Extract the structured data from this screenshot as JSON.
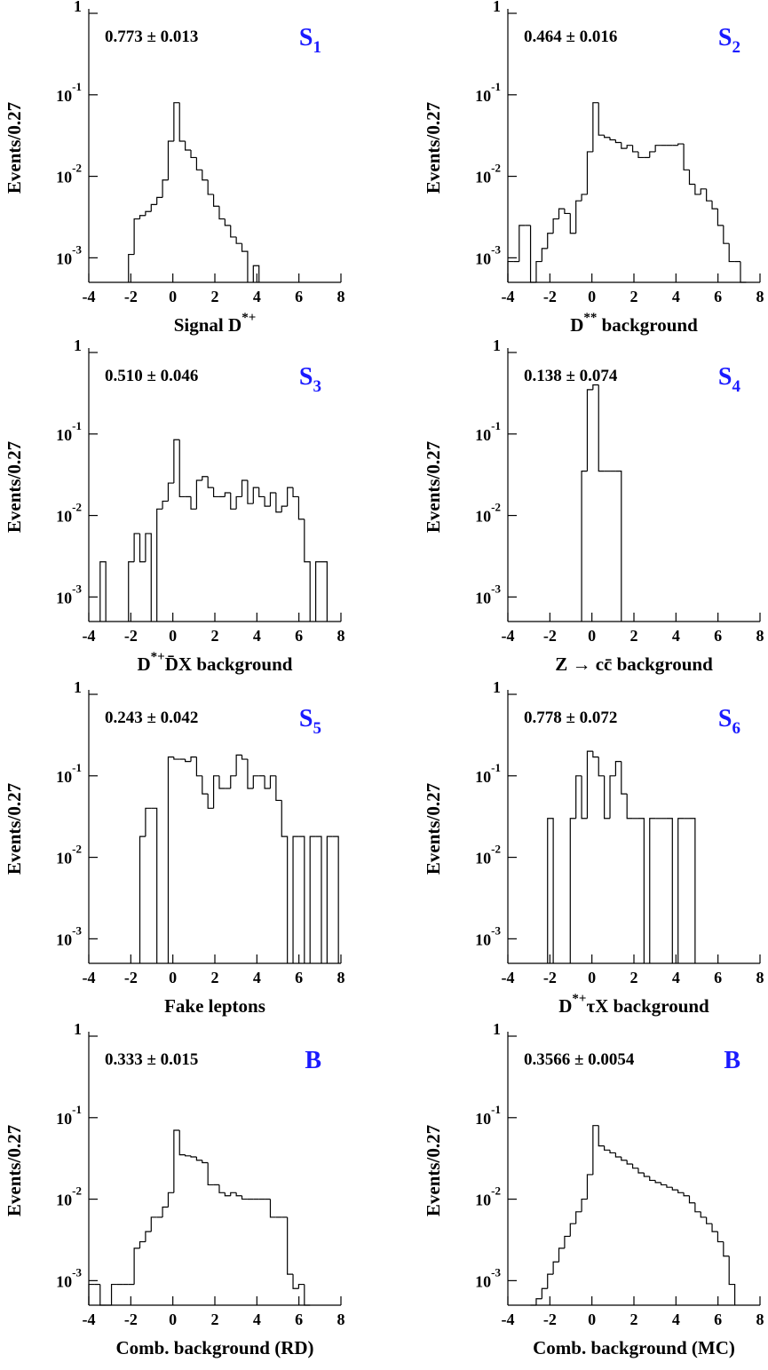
{
  "chart_data": [
    {
      "type": "histogram",
      "log_y": true,
      "annotation": "0.773 ± 0.013",
      "tag": {
        "text": "S",
        "sub": "1"
      },
      "ylabel": "Events/0.27",
      "xlabel": [
        {
          "text": "Signal D"
        },
        {
          "sup": "*+"
        }
      ],
      "bins": [
        -4,
        -3.73,
        -3.46,
        -3.19,
        -2.92,
        -2.65,
        -2.38,
        -2.11,
        -1.84,
        -1.57,
        -1.3,
        -1.03,
        -0.76,
        -0.49,
        -0.22,
        0.05,
        0.32,
        0.59,
        0.86,
        1.13,
        1.4,
        1.67,
        1.94,
        2.21,
        2.48,
        2.75,
        3.02,
        3.29,
        3.56,
        3.83,
        4.1,
        4.37,
        4.64,
        4.91,
        5.18,
        5.45,
        5.72,
        5.99,
        6.26,
        6.53,
        6.8,
        7.07,
        7.34,
        7.61,
        7.88
      ],
      "values": [
        null,
        null,
        null,
        null,
        null,
        null,
        null,
        0.0011,
        0.003,
        0.0033,
        0.0037,
        0.0045,
        0.0055,
        0.009,
        0.027,
        0.08,
        0.027,
        0.021,
        0.017,
        0.012,
        0.009,
        0.006,
        0.0043,
        0.003,
        0.0025,
        0.0018,
        0.0015,
        0.0012,
        null,
        0.0008,
        null,
        null,
        null,
        null,
        null,
        null,
        null,
        null,
        null,
        null,
        null,
        null,
        null,
        null
      ],
      "xlim": [
        -4,
        8
      ],
      "xticks": [
        -4,
        -2,
        0,
        2,
        4,
        6,
        8
      ],
      "ylim": [
        0.0005,
        1
      ],
      "yticks": [
        1,
        {
          "value": 0.1,
          "label": "10",
          "exponent": "-1"
        },
        {
          "value": 0.01,
          "label": "10",
          "exponent": "-2"
        },
        {
          "value": 0.001,
          "label": "10",
          "exponent": "-3"
        }
      ]
    },
    {
      "type": "histogram",
      "log_y": true,
      "annotation": "0.464 ± 0.016",
      "tag": {
        "text": "S",
        "sub": "2"
      },
      "ylabel": "Events/0.27",
      "xlabel": [
        {
          "text": "D"
        },
        {
          "sup": "**"
        },
        {
          "text": " background"
        }
      ],
      "bins": [
        -4,
        -3.73,
        -3.46,
        -3.19,
        -2.92,
        -2.65,
        -2.38,
        -2.11,
        -1.84,
        -1.57,
        -1.3,
        -1.03,
        -0.76,
        -0.49,
        -0.22,
        0.05,
        0.32,
        0.59,
        0.86,
        1.13,
        1.4,
        1.67,
        1.94,
        2.21,
        2.48,
        2.75,
        3.02,
        3.29,
        3.56,
        3.83,
        4.1,
        4.37,
        4.64,
        4.91,
        5.18,
        5.45,
        5.72,
        5.99,
        6.26,
        6.53,
        6.8,
        7.07,
        7.34,
        7.61,
        7.88
      ],
      "values": [
        0.0009,
        0.0009,
        0.0025,
        0.0025,
        0.0005,
        0.0009,
        0.0013,
        0.002,
        0.003,
        0.004,
        0.0035,
        0.002,
        0.005,
        0.006,
        0.02,
        0.08,
        0.032,
        0.03,
        0.028,
        0.026,
        0.022,
        0.024,
        0.02,
        0.017,
        0.017,
        0.02,
        0.024,
        0.024,
        0.024,
        0.024,
        0.025,
        0.012,
        0.008,
        0.006,
        0.007,
        0.005,
        0.004,
        0.0025,
        0.0015,
        0.0009,
        0.0009,
        0.0005,
        null,
        null
      ],
      "xlim": [
        -4,
        8
      ],
      "xticks": [
        -4,
        -2,
        0,
        2,
        4,
        6,
        8
      ],
      "ylim": [
        0.0005,
        1
      ],
      "yticks": [
        1,
        {
          "value": 0.1,
          "label": "10",
          "exponent": "-1"
        },
        {
          "value": 0.01,
          "label": "10",
          "exponent": "-2"
        },
        {
          "value": 0.001,
          "label": "10",
          "exponent": "-3"
        }
      ]
    },
    {
      "type": "histogram",
      "log_y": true,
      "annotation": "0.510 ± 0.046",
      "tag": {
        "text": "S",
        "sub": "3"
      },
      "ylabel": "Events/0.27",
      "xlabel": [
        {
          "text": "D"
        },
        {
          "sup": "*+"
        },
        {
          "text": "D̄X background"
        }
      ],
      "bins": [
        -4,
        -3.73,
        -3.46,
        -3.19,
        -2.92,
        -2.65,
        -2.38,
        -2.11,
        -1.84,
        -1.57,
        -1.3,
        -1.03,
        -0.76,
        -0.49,
        -0.22,
        0.05,
        0.32,
        0.59,
        0.86,
        1.13,
        1.4,
        1.67,
        1.94,
        2.21,
        2.48,
        2.75,
        3.02,
        3.29,
        3.56,
        3.83,
        4.1,
        4.37,
        4.64,
        4.91,
        5.18,
        5.45,
        5.72,
        5.99,
        6.26,
        6.53,
        6.8,
        7.07,
        7.34,
        7.61,
        7.88
      ],
      "values": [
        null,
        null,
        0.0027,
        null,
        null,
        null,
        null,
        0.0027,
        0.006,
        0.0027,
        0.006,
        null,
        0.012,
        0.015,
        0.025,
        0.085,
        0.017,
        0.017,
        0.012,
        0.027,
        0.03,
        0.022,
        0.017,
        0.017,
        0.019,
        0.012,
        0.017,
        0.027,
        0.014,
        0.022,
        0.017,
        0.013,
        0.019,
        0.011,
        0.013,
        0.022,
        0.017,
        0.009,
        0.0027,
        null,
        0.0027,
        0.0027,
        null,
        null
      ],
      "xlim": [
        -4,
        8
      ],
      "xticks": [
        -4,
        -2,
        0,
        2,
        4,
        6,
        8
      ],
      "ylim": [
        0.0005,
        1
      ],
      "yticks": [
        1,
        {
          "value": 0.1,
          "label": "10",
          "exponent": "-1"
        },
        {
          "value": 0.01,
          "label": "10",
          "exponent": "-2"
        },
        {
          "value": 0.001,
          "label": "10",
          "exponent": "-3"
        }
      ]
    },
    {
      "type": "histogram",
      "log_y": true,
      "annotation": "0.138 ± 0.074",
      "tag": {
        "text": "S",
        "sub": "4"
      },
      "ylabel": "Events/0.27",
      "xlabel": [
        {
          "text": "Z → cc̄ background"
        }
      ],
      "bins": [
        -4,
        -3.73,
        -3.46,
        -3.19,
        -2.92,
        -2.65,
        -2.38,
        -2.11,
        -1.84,
        -1.57,
        -1.3,
        -1.03,
        -0.76,
        -0.49,
        -0.22,
        0.05,
        0.32,
        0.59,
        0.86,
        1.13,
        1.4,
        1.67,
        1.94,
        2.21,
        2.48,
        2.75,
        3.02,
        3.29,
        3.56,
        3.83,
        4.1,
        4.37,
        4.64,
        4.91,
        5.18,
        5.45,
        5.72,
        5.99,
        6.26,
        6.53,
        6.8,
        7.07,
        7.34,
        7.61,
        7.88
      ],
      "values": [
        null,
        null,
        null,
        null,
        null,
        null,
        null,
        null,
        null,
        null,
        null,
        null,
        null,
        0.035,
        0.35,
        0.4,
        0.035,
        0.035,
        0.035,
        0.035,
        null,
        null,
        null,
        null,
        null,
        null,
        null,
        null,
        null,
        null,
        null,
        null,
        null,
        null,
        null,
        null,
        null,
        null,
        null,
        null,
        null,
        null,
        null,
        null
      ],
      "xlim": [
        -4,
        8
      ],
      "xticks": [
        -4,
        -2,
        0,
        2,
        4,
        6,
        8
      ],
      "ylim": [
        0.0005,
        1
      ],
      "yticks": [
        1,
        {
          "value": 0.1,
          "label": "10",
          "exponent": "-1"
        },
        {
          "value": 0.01,
          "label": "10",
          "exponent": "-2"
        },
        {
          "value": 0.001,
          "label": "10",
          "exponent": "-3"
        }
      ]
    },
    {
      "type": "histogram",
      "log_y": true,
      "annotation": "0.243 ± 0.042",
      "tag": {
        "text": "S",
        "sub": "5"
      },
      "ylabel": "Events/0.27",
      "xlabel": [
        {
          "text": "Fake leptons"
        }
      ],
      "bins": [
        -4,
        -3.73,
        -3.46,
        -3.19,
        -2.92,
        -2.65,
        -2.38,
        -2.11,
        -1.84,
        -1.57,
        -1.3,
        -1.03,
        -0.76,
        -0.49,
        -0.22,
        0.05,
        0.32,
        0.59,
        0.86,
        1.13,
        1.4,
        1.67,
        1.94,
        2.21,
        2.48,
        2.75,
        3.02,
        3.29,
        3.56,
        3.83,
        4.1,
        4.37,
        4.64,
        4.91,
        5.18,
        5.45,
        5.72,
        5.99,
        6.26,
        6.53,
        6.8,
        7.07,
        7.34,
        7.61,
        7.88
      ],
      "values": [
        null,
        null,
        null,
        null,
        null,
        null,
        null,
        null,
        null,
        0.018,
        0.04,
        0.04,
        null,
        null,
        0.17,
        0.16,
        0.16,
        0.15,
        0.17,
        0.1,
        0.06,
        0.04,
        0.1,
        0.07,
        0.07,
        0.1,
        0.18,
        0.16,
        0.07,
        0.1,
        0.1,
        0.07,
        0.1,
        0.05,
        0.018,
        null,
        0.018,
        0.018,
        null,
        0.018,
        0.018,
        null,
        0.018,
        0.018
      ],
      "xlim": [
        -4,
        8
      ],
      "xticks": [
        -4,
        -2,
        0,
        2,
        4,
        6,
        8
      ],
      "ylim": [
        0.0005,
        1
      ],
      "yticks": [
        1,
        {
          "value": 0.1,
          "label": "10",
          "exponent": "-1"
        },
        {
          "value": 0.01,
          "label": "10",
          "exponent": "-2"
        },
        {
          "value": 0.001,
          "label": "10",
          "exponent": "-3"
        }
      ]
    },
    {
      "type": "histogram",
      "log_y": true,
      "annotation": "0.778 ± 0.072",
      "tag": {
        "text": "S",
        "sub": "6"
      },
      "ylabel": "Events/0.27",
      "xlabel": [
        {
          "text": "D"
        },
        {
          "sup": "*+"
        },
        {
          "text": "τX background"
        }
      ],
      "bins": [
        -4,
        -3.73,
        -3.46,
        -3.19,
        -2.92,
        -2.65,
        -2.38,
        -2.11,
        -1.84,
        -1.57,
        -1.3,
        -1.03,
        -0.76,
        -0.49,
        -0.22,
        0.05,
        0.32,
        0.59,
        0.86,
        1.13,
        1.4,
        1.67,
        1.94,
        2.21,
        2.48,
        2.75,
        3.02,
        3.29,
        3.56,
        3.83,
        4.1,
        4.37,
        4.64,
        4.91,
        5.18,
        5.45,
        5.72,
        5.99,
        6.26,
        6.53,
        6.8,
        7.07,
        7.34,
        7.61,
        7.88
      ],
      "values": [
        null,
        null,
        null,
        null,
        null,
        null,
        null,
        0.03,
        null,
        null,
        null,
        0.03,
        0.1,
        0.03,
        0.2,
        0.17,
        0.1,
        0.03,
        0.1,
        0.15,
        0.06,
        0.03,
        0.03,
        0.03,
        null,
        0.03,
        0.03,
        0.03,
        0.03,
        null,
        0.03,
        0.03,
        0.03,
        null,
        null,
        null,
        null,
        null,
        null,
        null,
        null,
        null,
        null,
        null
      ],
      "xlim": [
        -4,
        8
      ],
      "xticks": [
        -4,
        -2,
        0,
        2,
        4,
        6,
        8
      ],
      "ylim": [
        0.0005,
        1
      ],
      "yticks": [
        1,
        {
          "value": 0.1,
          "label": "10",
          "exponent": "-1"
        },
        {
          "value": 0.01,
          "label": "10",
          "exponent": "-2"
        },
        {
          "value": 0.001,
          "label": "10",
          "exponent": "-3"
        }
      ]
    },
    {
      "type": "histogram",
      "log_y": true,
      "annotation": "0.333 ± 0.015",
      "tag": {
        "text": "B"
      },
      "ylabel": "Events/0.27",
      "xlabel": [
        {
          "text": "Comb. background (RD)"
        }
      ],
      "bins": [
        -4,
        -3.73,
        -3.46,
        -3.19,
        -2.92,
        -2.65,
        -2.38,
        -2.11,
        -1.84,
        -1.57,
        -1.3,
        -1.03,
        -0.76,
        -0.49,
        -0.22,
        0.05,
        0.32,
        0.59,
        0.86,
        1.13,
        1.4,
        1.67,
        1.94,
        2.21,
        2.48,
        2.75,
        3.02,
        3.29,
        3.56,
        3.83,
        4.1,
        4.37,
        4.64,
        4.91,
        5.18,
        5.45,
        5.72,
        5.99,
        6.26,
        6.53,
        6.8,
        7.07,
        7.34,
        7.61,
        7.88
      ],
      "values": [
        0.0009,
        0.0009,
        0.0005,
        0.0005,
        0.0009,
        0.0009,
        0.0009,
        0.0009,
        0.0025,
        0.003,
        0.004,
        0.006,
        0.006,
        0.008,
        0.012,
        0.07,
        0.035,
        0.034,
        0.033,
        0.03,
        0.028,
        0.015,
        0.015,
        0.012,
        0.011,
        0.012,
        0.011,
        0.01,
        0.01,
        0.01,
        0.01,
        0.01,
        0.006,
        0.006,
        0.006,
        0.0012,
        0.0008,
        0.0009,
        0.0005,
        null,
        null,
        null,
        null,
        null
      ],
      "xlim": [
        -4,
        8
      ],
      "xticks": [
        -4,
        -2,
        0,
        2,
        4,
        6,
        8
      ],
      "ylim": [
        0.0005,
        1
      ],
      "yticks": [
        1,
        {
          "value": 0.1,
          "label": "10",
          "exponent": "-1"
        },
        {
          "value": 0.01,
          "label": "10",
          "exponent": "-2"
        },
        {
          "value": 0.001,
          "label": "10",
          "exponent": "-3"
        }
      ]
    },
    {
      "type": "histogram",
      "log_y": true,
      "annotation": "0.3566 ± 0.0054",
      "tag": {
        "text": "B"
      },
      "ylabel": "Events/0.27",
      "xlabel": [
        {
          "text": "Comb. background (MC)"
        }
      ],
      "bins": [
        -4,
        -3.73,
        -3.46,
        -3.19,
        -2.92,
        -2.65,
        -2.38,
        -2.11,
        -1.84,
        -1.57,
        -1.3,
        -1.03,
        -0.76,
        -0.49,
        -0.22,
        0.05,
        0.32,
        0.59,
        0.86,
        1.13,
        1.4,
        1.67,
        1.94,
        2.21,
        2.48,
        2.75,
        3.02,
        3.29,
        3.56,
        3.83,
        4.1,
        4.37,
        4.64,
        4.91,
        5.18,
        5.45,
        5.72,
        5.99,
        6.26,
        6.53,
        6.8,
        7.07,
        7.34,
        7.61,
        7.88
      ],
      "values": [
        null,
        null,
        null,
        null,
        0.0005,
        0.0006,
        0.0008,
        0.0012,
        0.0017,
        0.0025,
        0.0035,
        0.005,
        0.007,
        0.01,
        0.02,
        0.08,
        0.045,
        0.04,
        0.037,
        0.033,
        0.03,
        0.027,
        0.024,
        0.021,
        0.019,
        0.017,
        0.016,
        0.015,
        0.014,
        0.013,
        0.012,
        0.011,
        0.009,
        0.007,
        0.006,
        0.005,
        0.004,
        0.003,
        0.002,
        0.0009,
        null,
        null,
        null,
        null
      ],
      "xlim": [
        -4,
        8
      ],
      "xticks": [
        -4,
        -2,
        0,
        2,
        4,
        6,
        8
      ],
      "ylim": [
        0.0005,
        1
      ],
      "yticks": [
        1,
        {
          "value": 0.1,
          "label": "10",
          "exponent": "-1"
        },
        {
          "value": 0.01,
          "label": "10",
          "exponent": "-2"
        },
        {
          "value": 0.001,
          "label": "10",
          "exponent": "-3"
        }
      ]
    }
  ]
}
